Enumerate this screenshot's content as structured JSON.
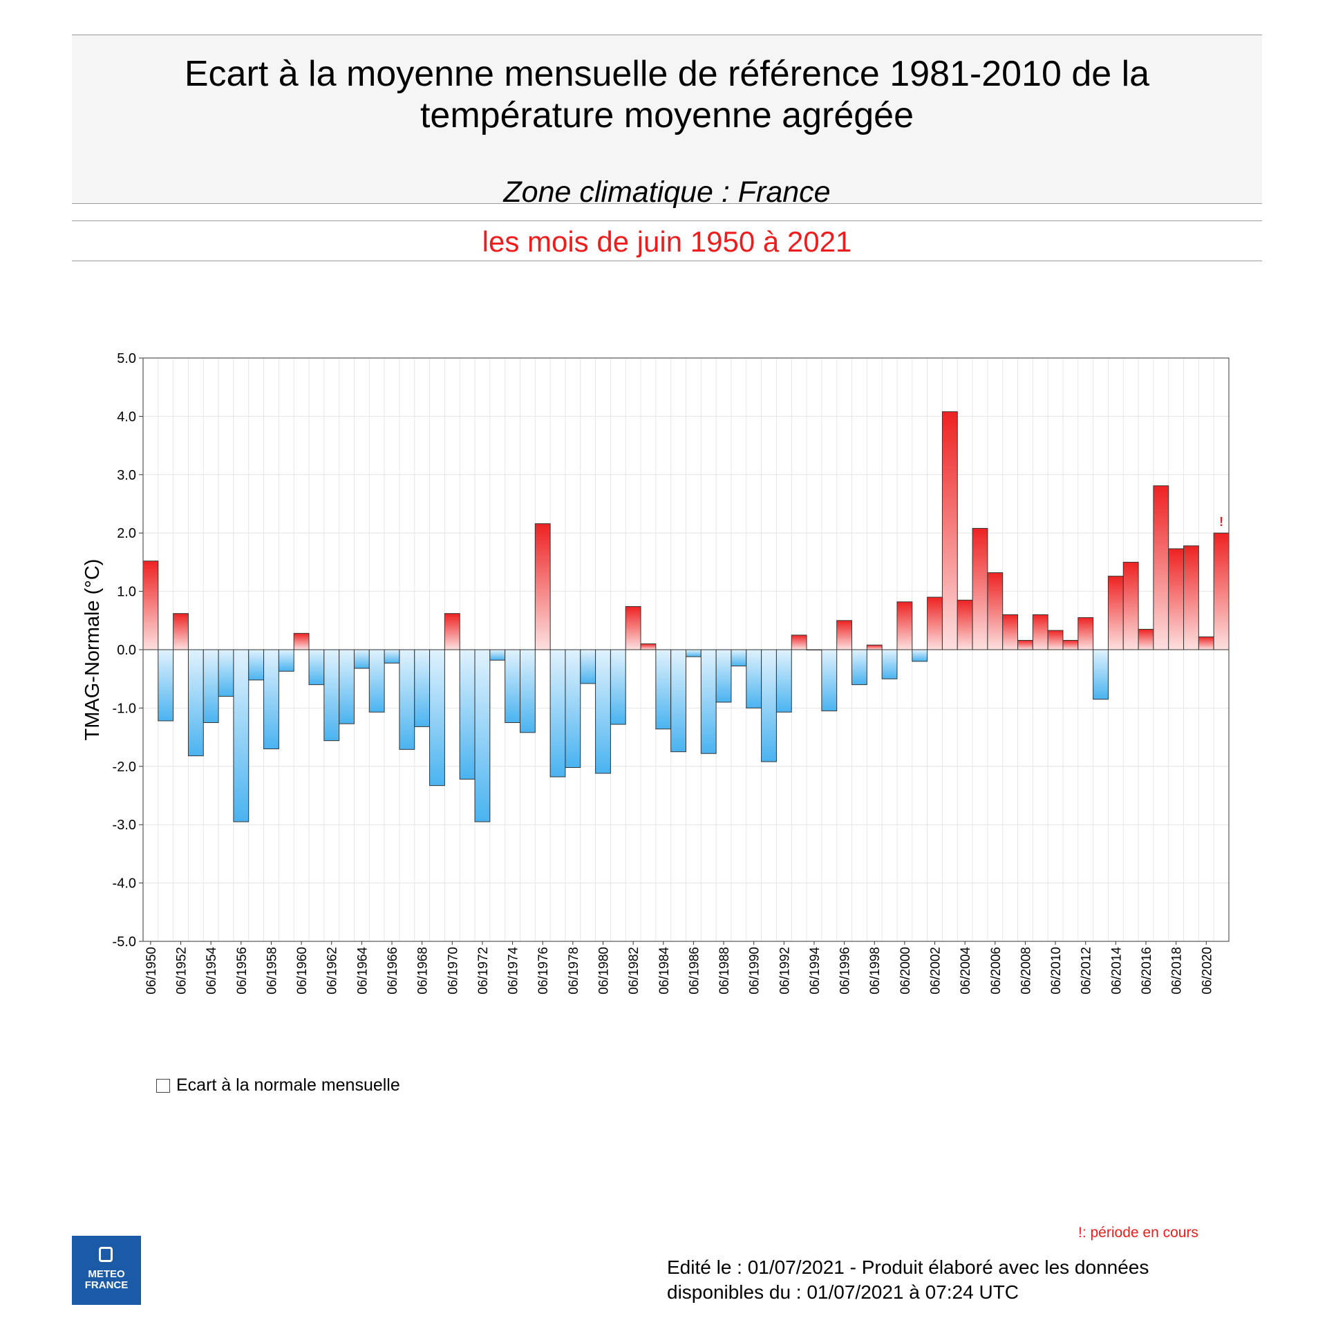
{
  "header": {
    "title": "Ecart à la moyenne mensuelle de référence 1981-2010 de la\ntempérature moyenne  agrégée",
    "subtitle": "Zone climatique : France"
  },
  "period_label": "les mois de juin 1950 à 2021",
  "legend": {
    "label": "Ecart à la normale mensuelle"
  },
  "footer": {
    "current_period_note": "!: période en cours",
    "edited": "Edité le : 01/07/2021 - Produit élaboré avec les données\ndisponibles du : 01/07/2021 à 07:24 UTC"
  },
  "logo": {
    "text": "METEO\nFRANCE"
  },
  "colors": {
    "positive": "#ee2222",
    "negative": "#4ab3f0",
    "period_text": "#ee1c1c"
  },
  "chart_data": {
    "type": "bar",
    "title": "Ecart à la moyenne mensuelle de référence 1981-2010 de la température moyenne agrégée",
    "ylabel": "TMAG-Normale (°C)",
    "xlabel": "",
    "ylim": [
      -5,
      5
    ],
    "yticks": [
      "5.0",
      "4.0",
      "3.0",
      "2.0",
      "1.0",
      "0.0",
      "-1.0",
      "-2.0",
      "-3.0",
      "-4.0",
      "-5.0"
    ],
    "categories": [
      "06/1950",
      "06/1951",
      "06/1952",
      "06/1953",
      "06/1954",
      "06/1955",
      "06/1956",
      "06/1957",
      "06/1958",
      "06/1959",
      "06/1960",
      "06/1961",
      "06/1962",
      "06/1963",
      "06/1964",
      "06/1965",
      "06/1966",
      "06/1967",
      "06/1968",
      "06/1969",
      "06/1970",
      "06/1971",
      "06/1972",
      "06/1973",
      "06/1974",
      "06/1975",
      "06/1976",
      "06/1977",
      "06/1978",
      "06/1979",
      "06/1980",
      "06/1981",
      "06/1982",
      "06/1983",
      "06/1984",
      "06/1985",
      "06/1986",
      "06/1987",
      "06/1988",
      "06/1989",
      "06/1990",
      "06/1991",
      "06/1992",
      "06/1993",
      "06/1994",
      "06/1995",
      "06/1996",
      "06/1997",
      "06/1998",
      "06/1999",
      "06/2000",
      "06/2001",
      "06/2002",
      "06/2003",
      "06/2004",
      "06/2005",
      "06/2006",
      "06/2007",
      "06/2008",
      "06/2009",
      "06/2010",
      "06/2011",
      "06/2012",
      "06/2013",
      "06/2014",
      "06/2015",
      "06/2016",
      "06/2017",
      "06/2018",
      "06/2019",
      "06/2020",
      "06/2021"
    ],
    "values": [
      1.52,
      -1.22,
      0.62,
      -1.82,
      -1.25,
      -0.8,
      -2.95,
      -0.52,
      -1.7,
      -0.37,
      0.28,
      -0.6,
      -1.56,
      -1.27,
      -0.32,
      -1.07,
      -0.23,
      -1.71,
      -1.32,
      -2.33,
      0.62,
      -2.22,
      -2.95,
      -0.18,
      -1.25,
      -1.42,
      2.16,
      -2.18,
      -2.02,
      -0.58,
      -2.12,
      -1.28,
      0.74,
      0.1,
      -1.36,
      -1.75,
      -0.12,
      -1.78,
      -0.9,
      -0.28,
      -1.0,
      -1.92,
      -1.07,
      0.25,
      0.0,
      -1.05,
      0.5,
      -0.6,
      0.08,
      -0.5,
      0.82,
      -0.2,
      0.9,
      4.08,
      0.85,
      2.08,
      1.32,
      0.6,
      0.16,
      0.6,
      0.33,
      0.16,
      0.55,
      -0.85,
      1.26,
      1.5,
      0.35,
      2.81,
      1.73,
      1.78,
      0.22,
      2.0
    ],
    "current_period_marker": "!",
    "legend_label": "Ecart à la normale mensuelle"
  }
}
